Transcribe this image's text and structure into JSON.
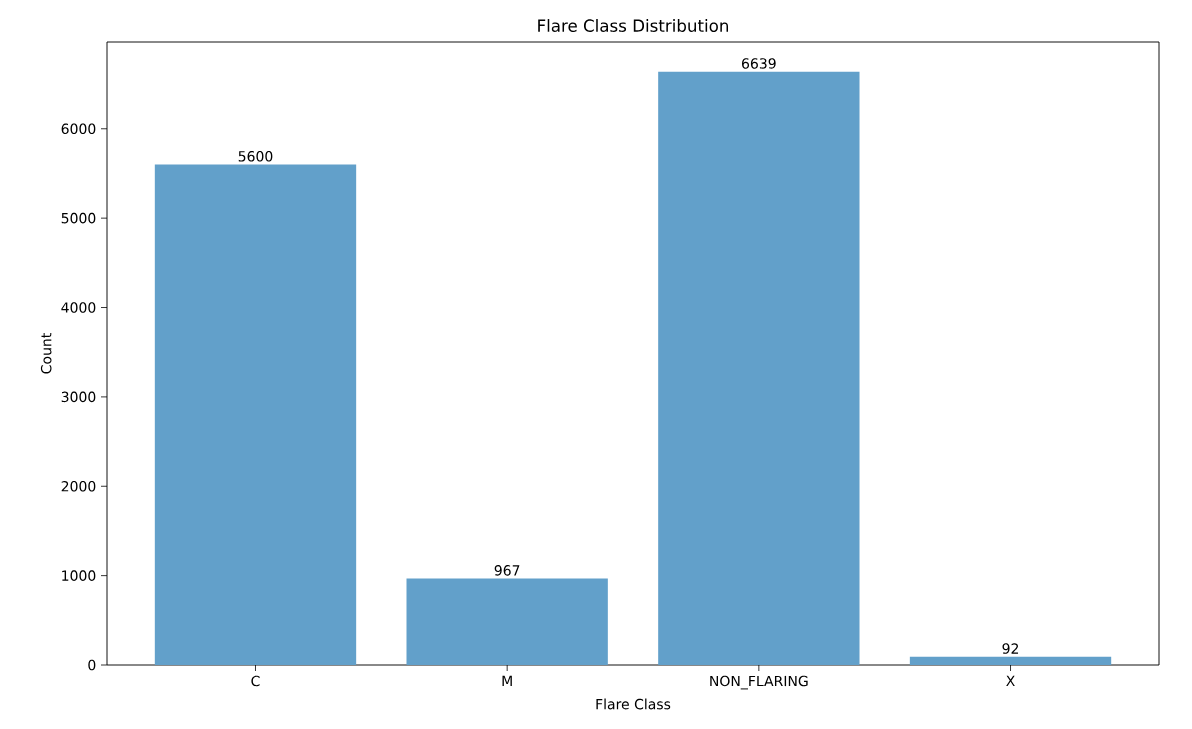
{
  "chart_data": {
    "type": "bar",
    "title": "Flare Class Distribution",
    "xlabel": "Flare Class",
    "ylabel": "Count",
    "categories": [
      "C",
      "M",
      "NON_FLARING",
      "X"
    ],
    "values": [
      5600,
      967,
      6639,
      92
    ],
    "color": "#62a0ca",
    "ylim": [
      0,
      6971
    ],
    "yticks": [
      0,
      1000,
      2000,
      3000,
      4000,
      5000,
      6000
    ],
    "data_labels": true,
    "grid": false
  }
}
